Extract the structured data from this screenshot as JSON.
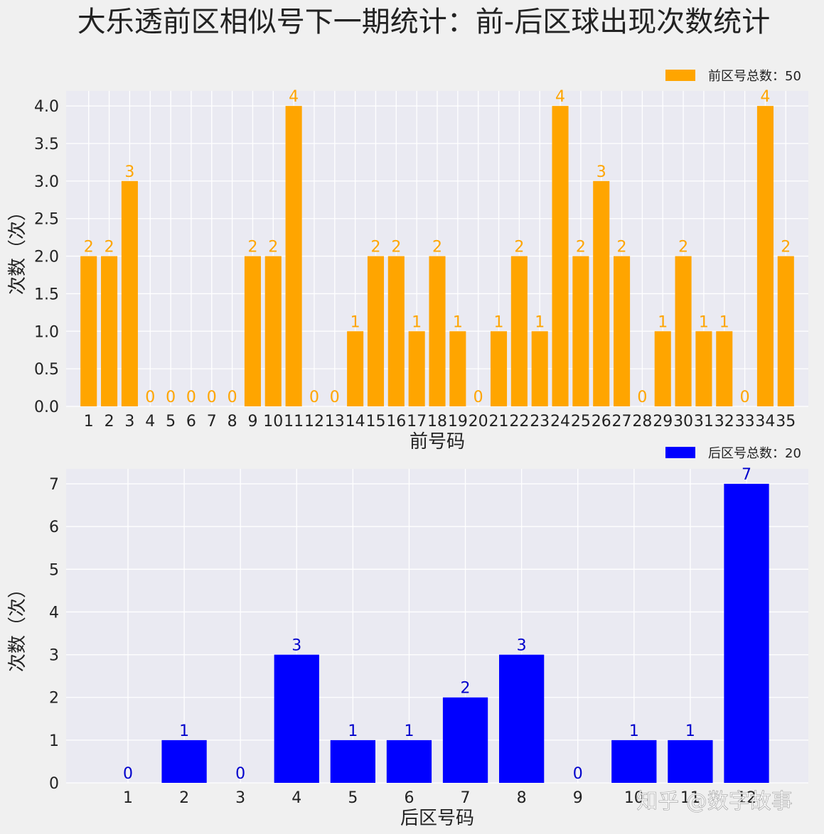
{
  "title": "大乐透前区相似号下一期统计：前-后区球出现次数统计",
  "watermark": "知乎 @数字故事",
  "chart_data": [
    {
      "type": "bar",
      "color": "#FFA500",
      "label_color": "#FFA500",
      "legend": "前区号总数：50",
      "legend_position": "top-right",
      "xlabel": "前号码",
      "ylabel": "次数（次）",
      "ylim": [
        0,
        4.2
      ],
      "yticks": [
        "0.0",
        "0.5",
        "1.0",
        "1.5",
        "2.0",
        "2.5",
        "3.0",
        "3.5",
        "4.0"
      ],
      "ytick_values": [
        0,
        0.5,
        1,
        1.5,
        2,
        2.5,
        3,
        3.5,
        4
      ],
      "grid": true,
      "categories": [
        "1",
        "2",
        "3",
        "4",
        "5",
        "6",
        "7",
        "8",
        "9",
        "10",
        "11",
        "12",
        "13",
        "14",
        "15",
        "16",
        "17",
        "18",
        "19",
        "20",
        "21",
        "22",
        "23",
        "24",
        "25",
        "26",
        "27",
        "28",
        "29",
        "30",
        "31",
        "32",
        "33",
        "34",
        "35"
      ],
      "values": [
        2,
        2,
        3,
        0,
        0,
        0,
        0,
        0,
        2,
        2,
        4,
        0,
        0,
        1,
        2,
        2,
        1,
        2,
        1,
        0,
        1,
        2,
        1,
        4,
        2,
        3,
        2,
        0,
        1,
        2,
        1,
        1,
        0,
        4,
        2
      ]
    },
    {
      "type": "bar",
      "color": "#0000FF",
      "label_color": "#0000CC",
      "legend": "后区号总数：20",
      "legend_position": "top-right",
      "xlabel": "后区号码",
      "ylabel": "次数（次）",
      "ylim": [
        0,
        7.35
      ],
      "yticks": [
        "0",
        "1",
        "2",
        "3",
        "4",
        "5",
        "6",
        "7"
      ],
      "ytick_values": [
        0,
        1,
        2,
        3,
        4,
        5,
        6,
        7
      ],
      "grid": true,
      "categories": [
        "1",
        "2",
        "3",
        "4",
        "5",
        "6",
        "7",
        "8",
        "9",
        "10",
        "11",
        "12"
      ],
      "values": [
        0,
        1,
        0,
        3,
        1,
        1,
        2,
        3,
        0,
        1,
        1,
        7
      ]
    }
  ]
}
